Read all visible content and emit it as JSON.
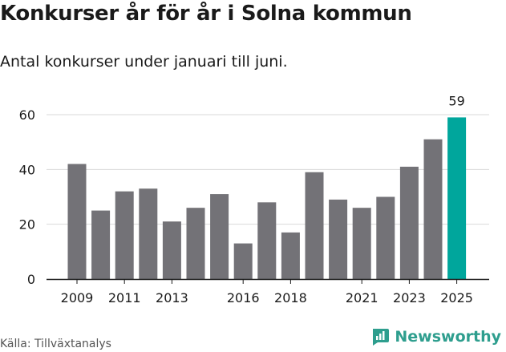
{
  "title": "Konkurser år för år i Solna kommun",
  "subtitle": "Antal konkurser under januari till juni.",
  "source": "Källa: Tillväxtanalys",
  "brand": "Newsworthy",
  "colors": {
    "bar": "#737277",
    "highlight": "#00a69c",
    "grid": "#d9d9d9",
    "axis": "#1a1a1a",
    "brand": "#2e9e8e"
  },
  "chart_data": {
    "type": "bar",
    "categories": [
      "2009",
      "2010",
      "2011",
      "2012",
      "2013",
      "2014",
      "2015",
      "2016",
      "2017",
      "2018",
      "2019",
      "2020",
      "2021",
      "2022",
      "2023",
      "2024",
      "2025"
    ],
    "values": [
      42,
      25,
      32,
      33,
      21,
      26,
      31,
      13,
      28,
      17,
      39,
      29,
      26,
      30,
      41,
      51,
      59
    ],
    "tick_labels": [
      "2009",
      "2011",
      "2013",
      "2016",
      "2018",
      "2021",
      "2023",
      "2025"
    ],
    "y_ticks": [
      0,
      20,
      40,
      60
    ],
    "ylim": [
      0,
      60
    ],
    "highlight_index": 16,
    "data_labels": [
      {
        "index": 16,
        "text": "59"
      }
    ],
    "grid": true
  }
}
